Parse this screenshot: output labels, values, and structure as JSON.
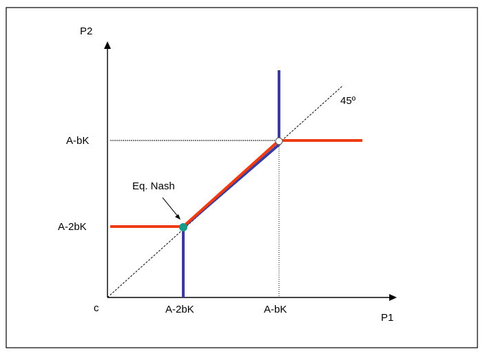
{
  "axes": {
    "x_label": "P1",
    "y_label": "P2",
    "origin_label": "c"
  },
  "ticks": {
    "x": [
      "A-2bK",
      "A-bK"
    ],
    "y": [
      "A-2bK",
      "A-bK"
    ]
  },
  "annotations": {
    "diagonal_label": "45º",
    "equilibrium_label": "Eq. Nash"
  },
  "colors": {
    "reaction_1": "#3b3b9e",
    "reaction_2": "#ef3a12",
    "equilibrium_point": "#1a9a8a",
    "guides": "#000000"
  }
}
